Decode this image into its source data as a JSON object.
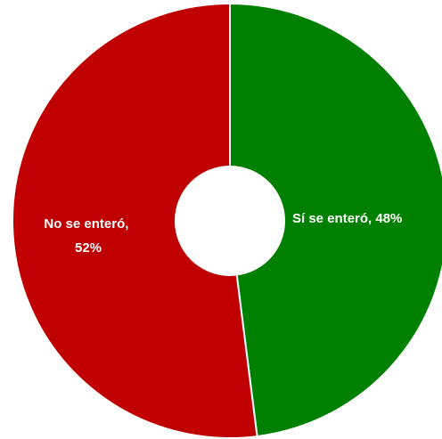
{
  "chart_data": {
    "type": "pie",
    "donut": true,
    "title": "",
    "slices": [
      {
        "label": "Sí se enteró",
        "value": 48,
        "display": "Sí se enteró, 48%",
        "color": "#008000"
      },
      {
        "label": "No se enteró",
        "value": 52,
        "display_lines": [
          "No se enteró,",
          "52%"
        ],
        "color": "#C00000"
      }
    ],
    "start_angle_deg": 0,
    "direction": "clockwise",
    "legend": "none"
  }
}
